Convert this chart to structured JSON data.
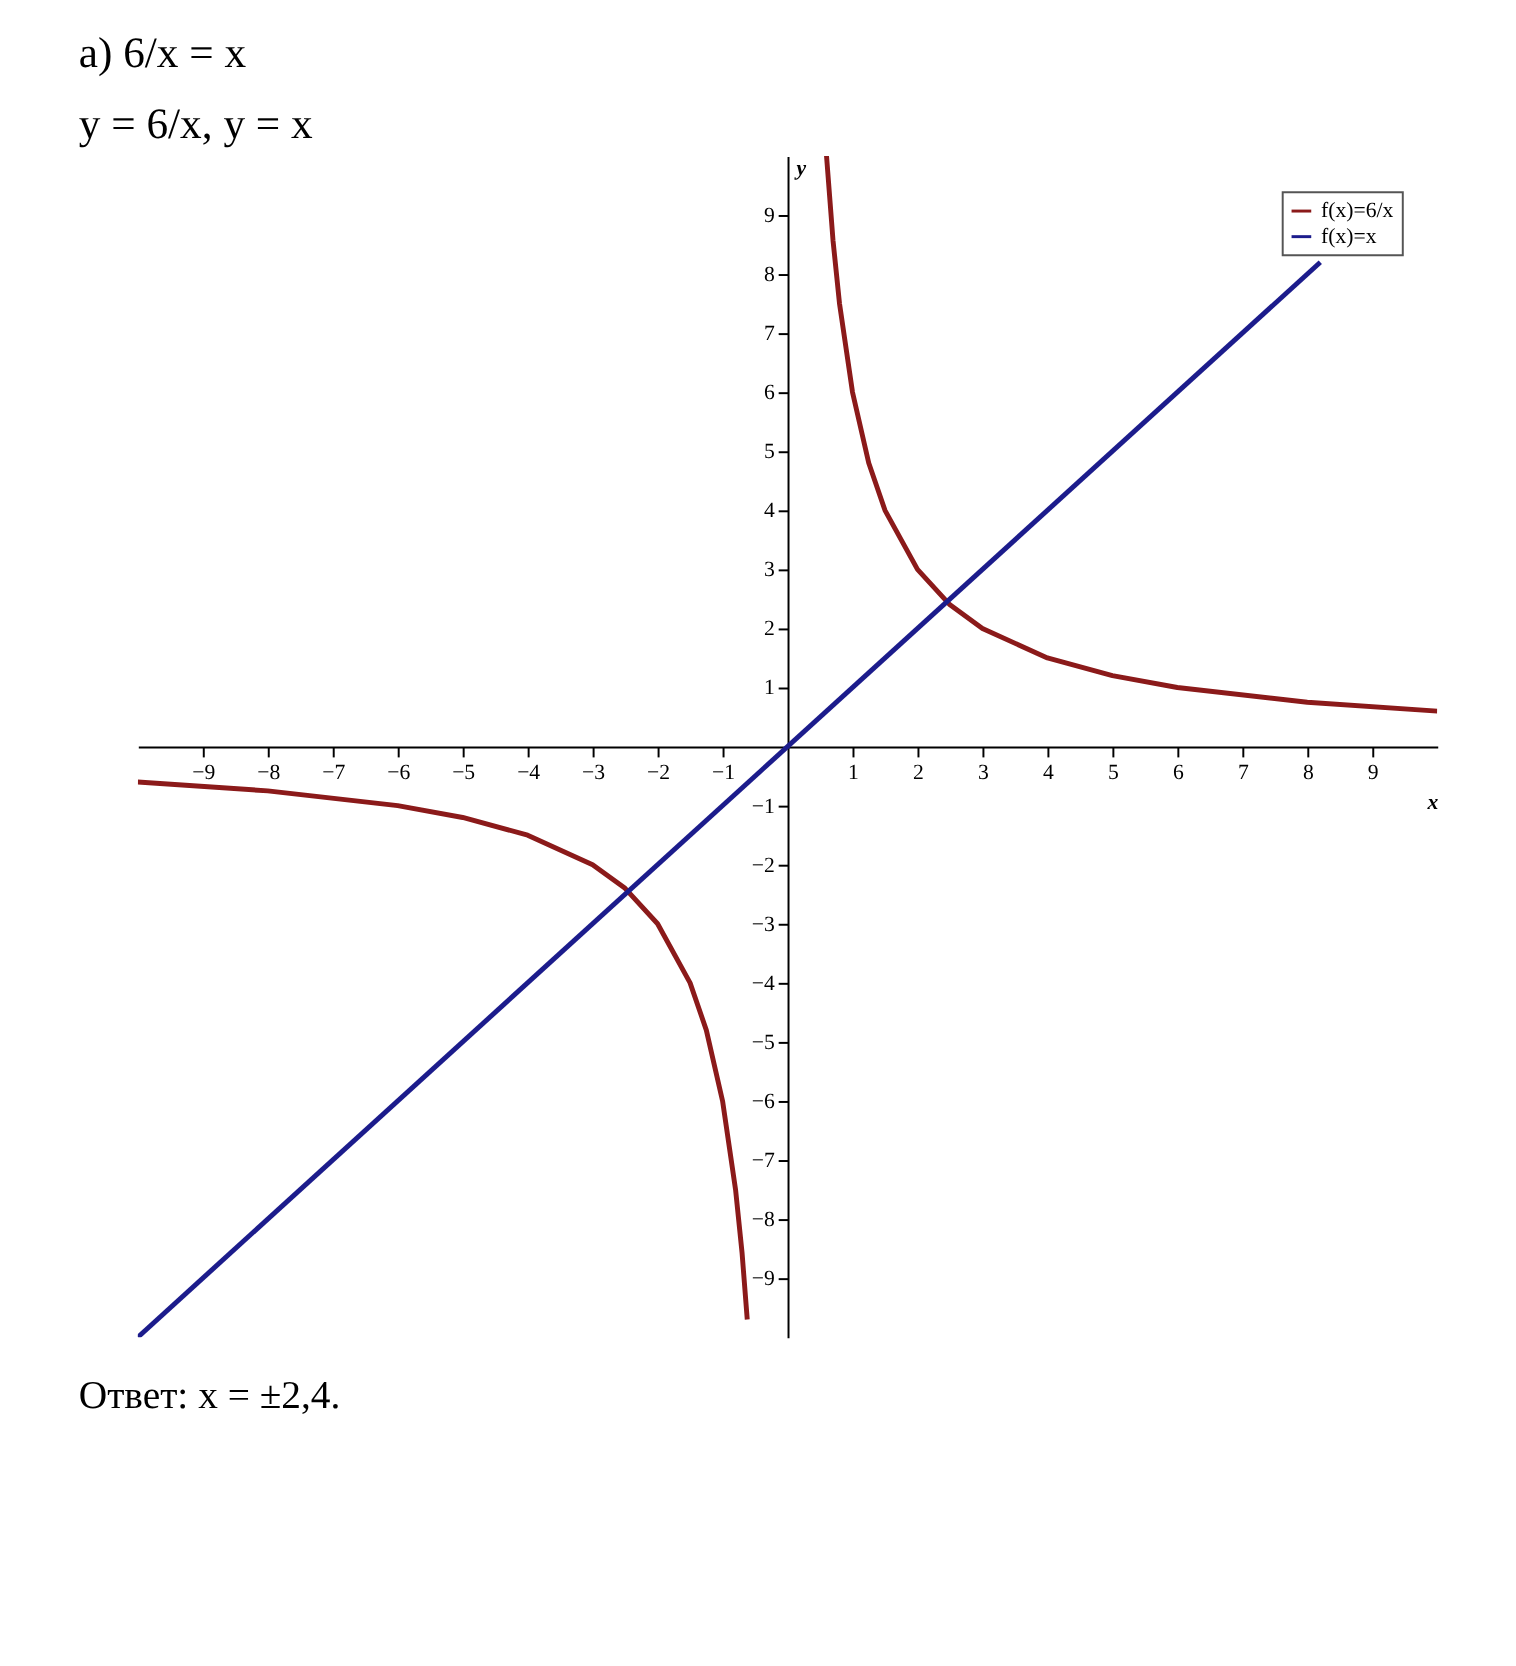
{
  "chart_data": {
    "type": "line",
    "title": "а) 6/x = x",
    "subtitle": "y = 6/x,        y = x",
    "xlabel": "x",
    "ylabel": "y",
    "xlim": [
      -10,
      10
    ],
    "ylim": [
      -10,
      10
    ],
    "xticks": [
      -9,
      -8,
      -7,
      -6,
      -5,
      -4,
      -3,
      -2,
      -1,
      1,
      2,
      3,
      4,
      5,
      6,
      7,
      8,
      9
    ],
    "yticks": [
      -9,
      -8,
      -7,
      -6,
      -5,
      -4,
      -3,
      -2,
      -1,
      1,
      2,
      3,
      4,
      5,
      6,
      7,
      8,
      9
    ],
    "series": [
      {
        "name": "f(x)=6/x",
        "color": "#8b1a1a",
        "x": [
          -10,
          -8,
          -6,
          -5,
          -4,
          -3,
          -2.5,
          -2,
          -1.5,
          -1.25,
          -1,
          -0.8,
          -0.7,
          -0.62,
          0,
          0.6,
          0.7,
          0.8,
          1,
          1.25,
          1.5,
          2,
          2.5,
          3,
          4,
          5,
          6,
          8,
          10
        ],
        "values": [
          -0.6,
          -0.75,
          -1,
          -1.2,
          -1.5,
          -2,
          -2.4,
          -3,
          -4,
          -4.8,
          -6,
          -7.5,
          -8.57,
          -9.7,
          null,
          10,
          8.57,
          7.5,
          6,
          4.8,
          4,
          3,
          2.4,
          2,
          1.5,
          1.2,
          1,
          0.75,
          0.6
        ]
      },
      {
        "name": "f(x)=x",
        "color": "#1c1c8c",
        "x": [
          -10,
          8.2
        ],
        "values": [
          -10,
          8.2
        ]
      }
    ],
    "legend": "top right",
    "grid": false,
    "marker": "none",
    "line_style": "solid",
    "annotations": [
      "Ответ: x = ±2,4."
    ]
  }
}
